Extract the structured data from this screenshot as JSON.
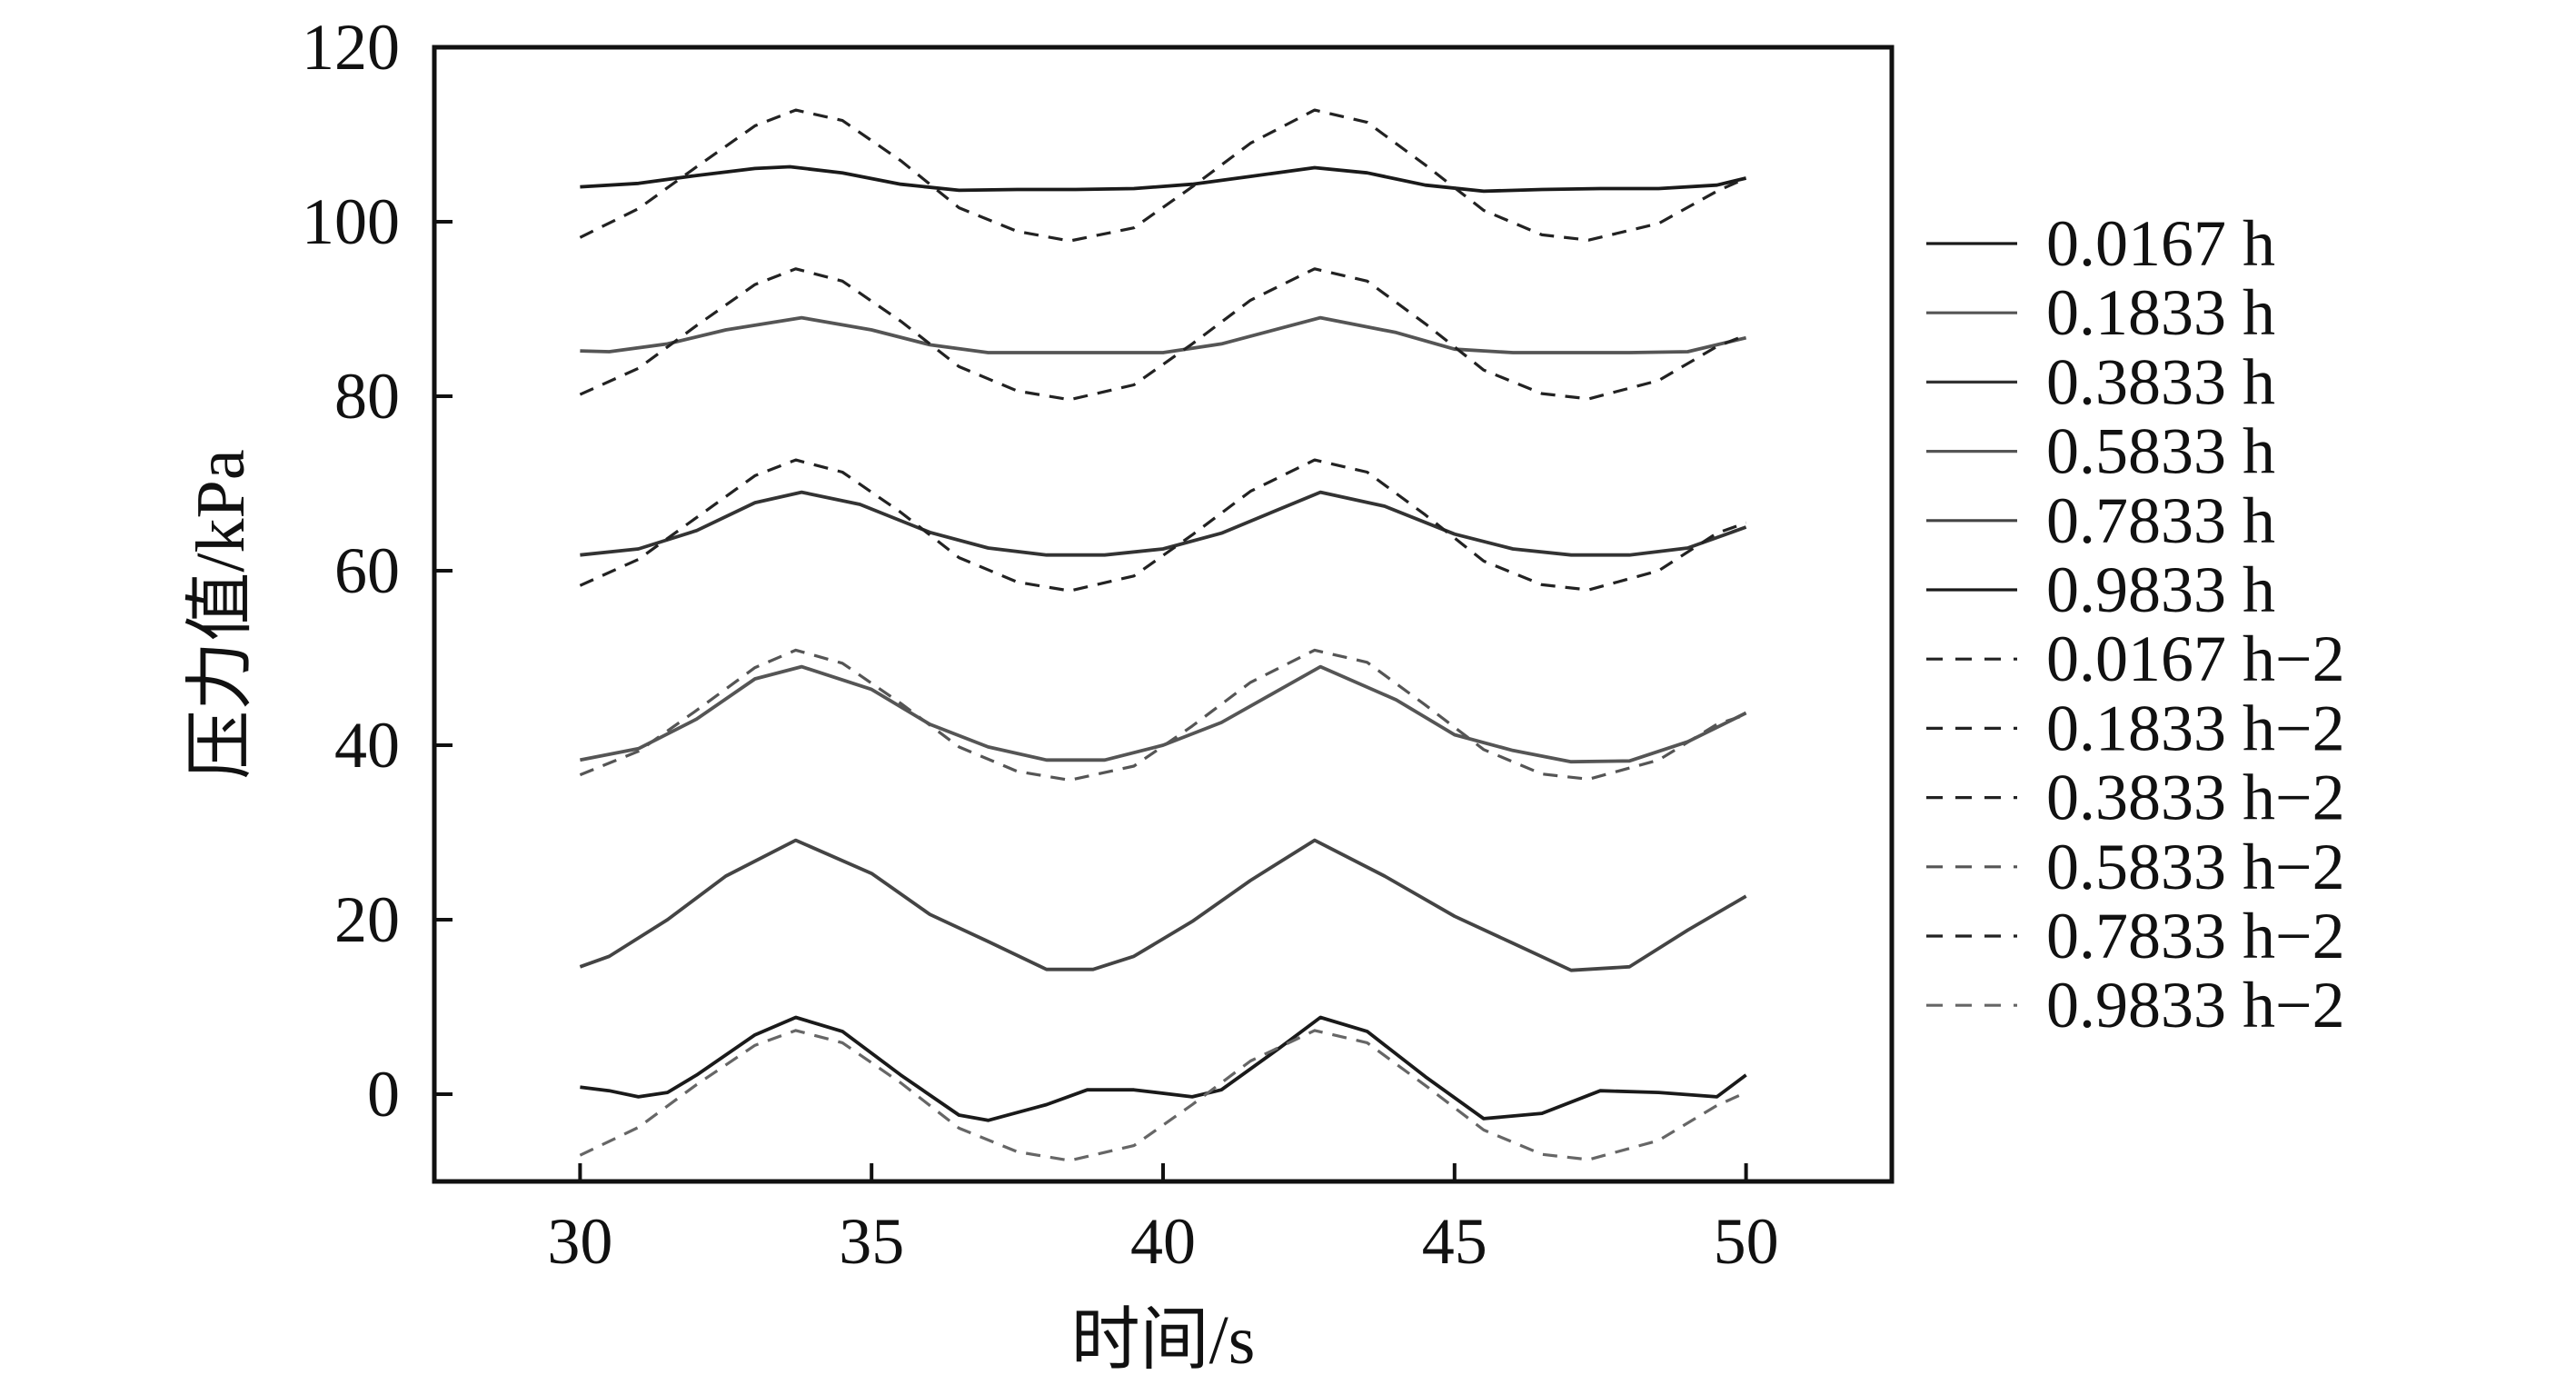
{
  "chart_data": {
    "type": "line",
    "xlabel": "时间/s",
    "ylabel": "压力值/kPa",
    "xlim": [
      27.5,
      52.5
    ],
    "ylim": [
      -10,
      120
    ],
    "xticks": [
      30,
      35,
      40,
      45,
      50
    ],
    "yticks": [
      0,
      20,
      40,
      60,
      80,
      100,
      120
    ],
    "grid": false,
    "legend_position": "right",
    "series": [
      {
        "name": "0.0167 h",
        "style": "solid",
        "color": "#1a1a1a",
        "x": [
          30,
          31,
          32,
          33,
          33.6,
          34.5,
          35.5,
          36.5,
          37.5,
          38.5,
          39.5,
          40.5,
          41.5,
          42.6,
          43.5,
          44.5,
          45.5,
          46.5,
          47.5,
          48.5,
          49.5,
          50
        ],
        "y": [
          104,
          104.4,
          105.3,
          106.1,
          106.3,
          105.6,
          104.3,
          103.6,
          103.7,
          103.7,
          103.8,
          104.3,
          105.2,
          106.2,
          105.6,
          104.2,
          103.5,
          103.7,
          103.8,
          103.8,
          104.2,
          105
        ]
      },
      {
        "name": "0.1833 h",
        "style": "solid",
        "color": "#555555",
        "x": [
          30,
          30.5,
          31.5,
          32.5,
          33.8,
          35,
          36,
          37,
          38,
          39,
          40,
          41,
          42.7,
          44,
          45,
          46,
          47,
          48,
          49,
          50
        ],
        "y": [
          85.2,
          85.1,
          86,
          87.6,
          89,
          87.6,
          85.9,
          85,
          85,
          85,
          85,
          86,
          89,
          87.3,
          85.4,
          85,
          85,
          85,
          85.1,
          86.7
        ]
      },
      {
        "name": "0.3833 h",
        "style": "solid",
        "color": "#333333",
        "x": [
          30,
          31,
          32,
          33,
          33.8,
          34.8,
          36,
          37,
          38,
          39,
          40,
          41,
          42.7,
          43.8,
          45,
          46,
          47,
          48,
          49,
          50
        ],
        "y": [
          61.8,
          62.5,
          64.6,
          67.8,
          69,
          67.6,
          64.4,
          62.6,
          61.8,
          61.8,
          62.5,
          64.3,
          69,
          67.4,
          64.2,
          62.5,
          61.8,
          61.8,
          62.6,
          65
        ]
      },
      {
        "name": "0.5833 h",
        "style": "solid",
        "color": "#555555",
        "x": [
          30,
          31,
          32,
          33,
          33.8,
          35,
          36,
          37,
          38,
          39,
          40,
          41,
          42.7,
          44,
          45,
          46,
          47,
          48,
          49,
          50
        ],
        "y": [
          38.3,
          39.6,
          43,
          47.6,
          49,
          46.4,
          42.4,
          39.8,
          38.3,
          38.3,
          40,
          42.6,
          49,
          45.2,
          41.2,
          39.4,
          38.1,
          38.2,
          40.4,
          43.7
        ]
      },
      {
        "name": "0.7833 h",
        "style": "solid",
        "color": "#444444",
        "x": [
          30,
          30.5,
          31.5,
          32.5,
          33.7,
          35,
          36,
          37,
          38,
          38.8,
          39.5,
          40.5,
          41.5,
          42.6,
          43.8,
          45,
          46,
          47,
          48,
          49,
          50
        ],
        "y": [
          14.6,
          15.8,
          20,
          25,
          29.1,
          25.3,
          20.6,
          17.5,
          14.3,
          14.3,
          15.8,
          19.8,
          24.5,
          29.1,
          25,
          20.4,
          17.3,
          14.2,
          14.6,
          18.8,
          22.7
        ]
      },
      {
        "name": "0.9833 h",
        "style": "solid",
        "color": "#1a1a1a",
        "x": [
          30,
          30.5,
          31,
          31.5,
          32,
          33,
          33.7,
          34.5,
          35.5,
          36.5,
          37,
          38,
          38.7,
          39.5,
          40.5,
          41,
          42,
          42.7,
          43.5,
          44.5,
          45.5,
          46.5,
          47.5,
          48.5,
          49.5,
          50
        ],
        "y": [
          0.8,
          0.4,
          -0.3,
          0.2,
          2.2,
          6.8,
          8.8,
          7.2,
          2.2,
          -2.4,
          -3,
          -1.2,
          0.5,
          0.5,
          -0.3,
          0.5,
          5.3,
          8.8,
          7.2,
          2,
          -2.8,
          -2.2,
          0.4,
          0.2,
          -0.3,
          2.2
        ]
      },
      {
        "name": "0.0167 h−2",
        "style": "dashed",
        "color": "#222222",
        "x": [
          30,
          31,
          32,
          33,
          33.7,
          34.5,
          35.5,
          36.5,
          37.5,
          38.4,
          39.5,
          40.5,
          41.5,
          42.6,
          43.5,
          44.5,
          45.5,
          46.5,
          47.3,
          48.5,
          49.5,
          50
        ],
        "y": [
          98.2,
          101.5,
          106.3,
          111,
          112.8,
          111.6,
          107,
          101.6,
          98.9,
          97.8,
          99.3,
          104,
          109,
          112.8,
          111.4,
          106.5,
          101.3,
          98.5,
          97.9,
          99.8,
          103.5,
          105
        ]
      },
      {
        "name": "0.1833 h−2",
        "style": "dashed",
        "color": "#222222",
        "x": [
          30,
          31,
          32,
          33,
          33.7,
          34.5,
          35.5,
          36.5,
          37.5,
          38.4,
          39.5,
          40.5,
          41.5,
          42.6,
          43.5,
          44.5,
          45.5,
          46.5,
          47.3,
          48.5,
          49.5,
          50
        ],
        "y": [
          80.2,
          83.2,
          88.1,
          92.8,
          94.6,
          93.2,
          88.6,
          83.4,
          80.6,
          79.6,
          81.3,
          86,
          91,
          94.6,
          93.2,
          88.3,
          83,
          80.3,
          79.7,
          81.8,
          85.7,
          87
        ]
      },
      {
        "name": "0.3833 h−2",
        "style": "dashed",
        "color": "#222222",
        "x": [
          30,
          31,
          32,
          33,
          33.7,
          34.5,
          35.5,
          36.5,
          37.5,
          38.4,
          39.5,
          40.5,
          41.5,
          42.6,
          43.5,
          44.5,
          45.5,
          46.5,
          47.3,
          48.5,
          49.5,
          50
        ],
        "y": [
          58.3,
          61.3,
          66.1,
          70.9,
          72.7,
          71.3,
          66.7,
          61.5,
          58.7,
          57.7,
          59.4,
          64.1,
          69.1,
          72.7,
          71.3,
          66.4,
          61.1,
          58.4,
          57.8,
          60,
          64.3,
          65.5
        ]
      },
      {
        "name": "0.5833 h−2",
        "style": "dashed",
        "color": "#555555",
        "x": [
          30,
          31,
          32,
          33,
          33.7,
          34.5,
          35.5,
          36.5,
          37.5,
          38.4,
          39.5,
          40.5,
          41.5,
          42.6,
          43.5,
          44.5,
          45.5,
          46.5,
          47.3,
          48.5,
          49.5,
          50
        ],
        "y": [
          36.6,
          39.3,
          44,
          48.9,
          50.9,
          49.4,
          44.8,
          39.8,
          37,
          36,
          37.6,
          42.2,
          47.2,
          50.9,
          49.5,
          44.6,
          39.5,
          36.7,
          36.1,
          38.3,
          42.4,
          43.5
        ]
      },
      {
        "name": "0.7833 h−2",
        "style": "dashed",
        "color": "#222222",
        "x": [],
        "y": []
      },
      {
        "name": "0.9833 h−2",
        "style": "dashed",
        "color": "#666666",
        "x": [
          30,
          31,
          32,
          33,
          33.7,
          34.5,
          35.5,
          36.5,
          37.5,
          38.4,
          39.5,
          40.5,
          41.5,
          42.6,
          43.5,
          44.5,
          45.5,
          46.5,
          47.3,
          48.5,
          49.5,
          50
        ],
        "y": [
          -7,
          -3.8,
          1.1,
          5.6,
          7.3,
          5.9,
          1.3,
          -3.9,
          -6.6,
          -7.6,
          -5.9,
          -1.2,
          3.8,
          7.3,
          5.9,
          1,
          -4.1,
          -6.9,
          -7.5,
          -5.3,
          -1.3,
          0.2
        ]
      }
    ]
  }
}
